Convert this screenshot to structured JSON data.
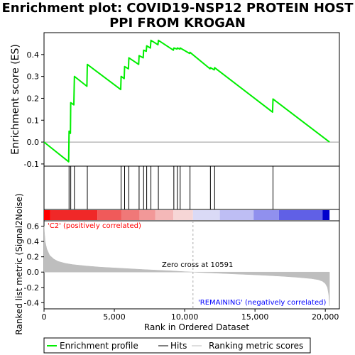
{
  "title": "Enrichment plot: COVID19-NSP12 PROTEIN HOST PPI FROM KROGAN",
  "chart_data": {
    "type": "line",
    "es_panel": {
      "ylabel": "Enrichment score (ES)",
      "ylim": [
        -0.11,
        0.5
      ],
      "yticks": [
        -0.1,
        0.0,
        0.1,
        0.2,
        0.3,
        0.4
      ],
      "ytick_labels": [
        "-0.1",
        "0.0",
        "0.1",
        "0.2",
        "0.3",
        "0.4"
      ],
      "series": [
        {
          "name": "Enrichment profile",
          "color": "#00ee00",
          "x": [
            0,
            1750,
            1780,
            1880,
            1900,
            2120,
            2160,
            3050,
            3080,
            5450,
            5480,
            5700,
            5730,
            6000,
            6030,
            6730,
            6760,
            7050,
            7080,
            7270,
            7300,
            7560,
            7600,
            8100,
            8130,
            9200,
            9230,
            9450,
            9480,
            9650,
            9680,
            10350,
            10380,
            11800,
            11830,
            12100,
            12130,
            16250,
            16280,
            20300
          ],
          "y": [
            0.0,
            -0.09,
            0.05,
            0.04,
            0.18,
            0.17,
            0.3,
            0.255,
            0.355,
            0.24,
            0.3,
            0.29,
            0.345,
            0.335,
            0.385,
            0.355,
            0.395,
            0.385,
            0.42,
            0.415,
            0.44,
            0.43,
            0.465,
            0.445,
            0.465,
            0.42,
            0.43,
            0.425,
            0.43,
            0.425,
            0.43,
            0.405,
            0.41,
            0.335,
            0.34,
            0.33,
            0.34,
            0.137,
            0.197,
            0.0
          ]
        }
      ]
    },
    "hits": {
      "name": "Hits",
      "x": [
        1780,
        1900,
        2160,
        3080,
        5480,
        5730,
        6030,
        6760,
        7080,
        7300,
        7600,
        8130,
        9230,
        9480,
        9680,
        10380,
        11830,
        12130,
        16280
      ]
    },
    "ranking_panel": {
      "ylabel": "Ranked list metric (Signal2Noise)",
      "xlabel": "Rank in Ordered Dataset",
      "xlim": [
        0,
        21000
      ],
      "xticks": [
        0,
        5000,
        10000,
        15000,
        20000
      ],
      "xtick_labels": [
        "0",
        "5,000",
        "10,000",
        "15,000",
        "20,000"
      ],
      "ylim": [
        -0.48,
        0.67
      ],
      "yticks": [
        -0.4,
        -0.2,
        0.0,
        0.2,
        0.4,
        0.6
      ],
      "ytick_labels": [
        "-0.4",
        "-0.2",
        "0.0",
        "0.2",
        "0.4",
        "0.6"
      ],
      "series": [
        {
          "name": "Ranking metric scores",
          "color": "#bebebe",
          "x": [
            0,
            80,
            200,
            400,
            700,
            1000,
            1500,
            2000,
            3000,
            4000,
            5000,
            6000,
            7000,
            8000,
            9000,
            10000,
            10591,
            11000,
            12000,
            13000,
            14000,
            15000,
            16000,
            17000,
            18000,
            19000,
            19500,
            19800,
            20000,
            20150,
            20250,
            20300
          ],
          "y": [
            0.6,
            0.4,
            0.3,
            0.22,
            0.17,
            0.14,
            0.115,
            0.1,
            0.08,
            0.065,
            0.055,
            0.045,
            0.035,
            0.025,
            0.017,
            0.006,
            0.0,
            -0.004,
            -0.012,
            -0.02,
            -0.028,
            -0.036,
            -0.045,
            -0.055,
            -0.068,
            -0.085,
            -0.1,
            -0.12,
            -0.15,
            -0.2,
            -0.3,
            -0.44
          ]
        }
      ],
      "zero_cross_label": "Zero cross at 10591",
      "zero_cross": 10591,
      "pos_label": "'C2' (positively correlated)",
      "neg_label": "'REMAINING' (negatively correlated)",
      "pos_label_color": "#ff0000",
      "neg_label_color": "#0000ff"
    },
    "heat_bar": {
      "segments": [
        {
          "from": 0,
          "to": 450,
          "color": "#ff0000"
        },
        {
          "from": 450,
          "to": 3800,
          "color": "#f02828"
        },
        {
          "from": 3800,
          "to": 5500,
          "color": "#f05a5a"
        },
        {
          "from": 5500,
          "to": 6800,
          "color": "#f07878"
        },
        {
          "from": 6800,
          "to": 7900,
          "color": "#f29898"
        },
        {
          "from": 7900,
          "to": 9200,
          "color": "#f4b8b8"
        },
        {
          "from": 9200,
          "to": 10591,
          "color": "#f6d6d6"
        },
        {
          "from": 10591,
          "to": 12500,
          "color": "#dadaf6"
        },
        {
          "from": 12500,
          "to": 14900,
          "color": "#bebef4"
        },
        {
          "from": 14900,
          "to": 16700,
          "color": "#9090ee"
        },
        {
          "from": 16700,
          "to": 19800,
          "color": "#6060e6"
        },
        {
          "from": 19800,
          "to": 20300,
          "color": "#0000cc"
        }
      ]
    },
    "legend": {
      "placement": "bottom",
      "items": [
        {
          "label": "Enrichment profile",
          "color": "#00ee00"
        },
        {
          "label": "Hits",
          "color": "#000000"
        },
        {
          "label": "Ranking metric scores",
          "color": "#bebebe"
        }
      ]
    }
  }
}
